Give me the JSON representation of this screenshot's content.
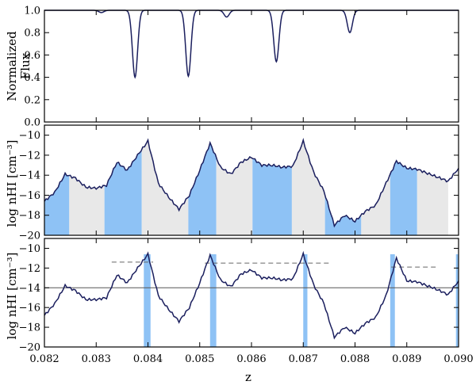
{
  "chart_data": [
    {
      "type": "line",
      "panel": "top",
      "ylabel_lines": [
        "Normalized",
        "Flux"
      ],
      "ylim": [
        0.0,
        1.0
      ],
      "yticks": [
        "0.0",
        "0.2",
        "0.4",
        "0.6",
        "0.8",
        "1.0"
      ],
      "xlim": [
        0.082,
        0.09
      ],
      "series_color": "#1b1f5e",
      "absorption_lines": [
        {
          "z": 0.082,
          "depth": 0.0,
          "width": 0.0001
        },
        {
          "z": 0.0831,
          "depth": 0.02,
          "width": 5e-05
        },
        {
          "z": 0.08375,
          "depth": 0.6,
          "width": 5e-05
        },
        {
          "z": 0.08478,
          "depth": 0.59,
          "width": 5e-05
        },
        {
          "z": 0.08552,
          "depth": 0.06,
          "width": 5e-05
        },
        {
          "z": 0.08648,
          "depth": 0.46,
          "width": 5e-05
        },
        {
          "z": 0.0879,
          "depth": 0.2,
          "width": 5e-05
        }
      ]
    },
    {
      "type": "line",
      "panel": "middle",
      "ylabel": "log nHI [cm⁻³]",
      "ylim": [
        -20,
        -9
      ],
      "yticks": [
        "−10",
        "−12",
        "−14",
        "−16",
        "−18",
        "−20"
      ],
      "xlim": [
        0.082,
        0.09
      ],
      "series_color": "#1b1f5e",
      "band_colors": [
        "#8ec2f5",
        "#e8e8e8"
      ],
      "bands_z": [
        0.082,
        0.08248,
        0.08316,
        0.08388,
        0.08478,
        0.08532,
        0.08602,
        0.08678,
        0.08742,
        0.08812,
        0.08868,
        0.0892,
        0.0898
      ],
      "x": [
        0.082,
        0.0822,
        0.0824,
        0.0826,
        0.0828,
        0.083,
        0.0832,
        0.0834,
        0.0836,
        0.0838,
        0.084,
        0.0842,
        0.0844,
        0.0846,
        0.0848,
        0.085,
        0.0852,
        0.0854,
        0.0856,
        0.0858,
        0.086,
        0.0862,
        0.0864,
        0.0866,
        0.0868,
        0.087,
        0.0872,
        0.0874,
        0.0876,
        0.0878,
        0.088,
        0.0882,
        0.0884,
        0.0886,
        0.0888,
        0.089,
        0.0892,
        0.0894,
        0.0896,
        0.0898,
        0.09
      ],
      "y": [
        -16.6,
        -15.7,
        -13.9,
        -14.3,
        -15.2,
        -15.3,
        -15.0,
        -12.7,
        -13.5,
        -12.0,
        -10.6,
        -14.8,
        -16.2,
        -17.4,
        -16.0,
        -13.5,
        -10.8,
        -13.2,
        -13.9,
        -12.7,
        -12.2,
        -13.0,
        -13.0,
        -13.2,
        -13.1,
        -10.6,
        -13.7,
        -15.6,
        -19.0,
        -18.0,
        -18.6,
        -17.6,
        -17.0,
        -14.8,
        -12.6,
        -13.3,
        -13.4,
        -13.8,
        -14.2,
        -14.6,
        -13.3
      ]
    },
    {
      "type": "line",
      "panel": "bottom",
      "ylabel": "log nHI [cm⁻³]",
      "ylim": [
        -20,
        -9
      ],
      "yticks": [
        "−10",
        "−12",
        "−14",
        "−16",
        "−18",
        "−20"
      ],
      "xlim": [
        0.082,
        0.09
      ],
      "xticks": [
        "0.082",
        "0.083",
        "0.084",
        "0.085",
        "0.086",
        "0.087",
        "0.088",
        "0.089",
        "0.090"
      ],
      "xlabel": "z",
      "series_color": "#1b1f5e",
      "threshold": -14,
      "highlight_color": "#8ec2f5",
      "highlights_z": [
        [
          0.08392,
          0.08405
        ],
        [
          0.0852,
          0.08532
        ],
        [
          0.087,
          0.08708
        ],
        [
          0.08868,
          0.08877
        ],
        [
          0.08995,
          0.08999
        ]
      ],
      "dashed_levels": [
        {
          "z": [
            0.0833,
            0.0841
          ],
          "y": -11.4
        },
        {
          "z": [
            0.0851,
            0.0875
          ],
          "y": -11.5
        },
        {
          "z": [
            0.0887,
            0.0896
          ],
          "y": -11.9
        }
      ],
      "x": [
        0.082,
        0.0822,
        0.0824,
        0.0826,
        0.0828,
        0.083,
        0.0832,
        0.0834,
        0.0836,
        0.0838,
        0.084,
        0.0842,
        0.0844,
        0.0846,
        0.0848,
        0.085,
        0.0852,
        0.0854,
        0.0856,
        0.0858,
        0.086,
        0.0862,
        0.0864,
        0.0866,
        0.0868,
        0.087,
        0.0872,
        0.0874,
        0.0876,
        0.0878,
        0.088,
        0.0882,
        0.0884,
        0.0886,
        0.0888,
        0.089,
        0.0892,
        0.0894,
        0.0896,
        0.0898,
        0.09
      ],
      "y": [
        -16.8,
        -15.6,
        -13.8,
        -14.3,
        -15.2,
        -15.2,
        -15.0,
        -12.7,
        -13.5,
        -12.0,
        -10.6,
        -14.8,
        -16.2,
        -17.4,
        -16.0,
        -13.5,
        -10.7,
        -13.2,
        -13.9,
        -12.6,
        -12.2,
        -13.0,
        -13.0,
        -13.2,
        -13.1,
        -10.6,
        -13.7,
        -15.6,
        -19.0,
        -18.0,
        -18.6,
        -17.6,
        -17.0,
        -14.8,
        -11.0,
        -13.3,
        -13.4,
        -13.8,
        -14.2,
        -14.7,
        -13.3
      ]
    }
  ]
}
